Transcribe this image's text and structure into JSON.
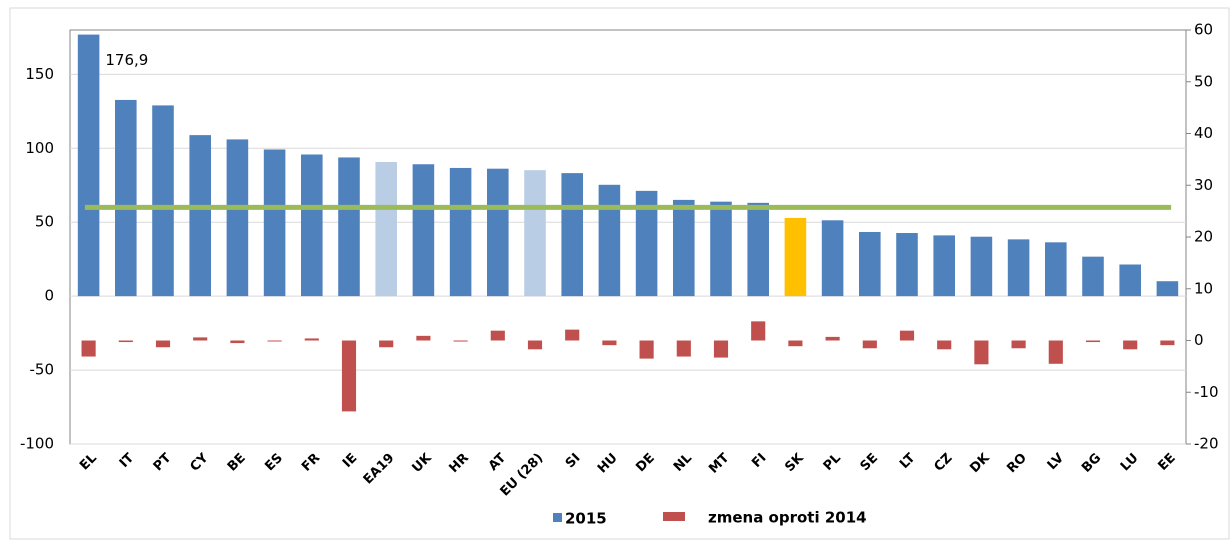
{
  "chart_data": {
    "type": "bar",
    "categories": [
      "EL",
      "IT",
      "PT",
      "CY",
      "BE",
      "ES",
      "FR",
      "IE",
      "EA19",
      "UK",
      "HR",
      "AT",
      "EU (28)",
      "SI",
      "HU",
      "DE",
      "NL",
      "MT",
      "FI",
      "SK",
      "PL",
      "SE",
      "LT",
      "CZ",
      "DK",
      "RO",
      "LV",
      "BG",
      "LU",
      "EE"
    ],
    "series": [
      {
        "name": "2015",
        "color": "#4f81bd",
        "colors": [
          "#4f81bd",
          "#4f81bd",
          "#4f81bd",
          "#4f81bd",
          "#4f81bd",
          "#4f81bd",
          "#4f81bd",
          "#4f81bd",
          "#b9cde5",
          "#4f81bd",
          "#4f81bd",
          "#4f81bd",
          "#b9cde5",
          "#4f81bd",
          "#4f81bd",
          "#4f81bd",
          "#4f81bd",
          "#4f81bd",
          "#4f81bd",
          "#ffc000",
          "#4f81bd",
          "#4f81bd",
          "#4f81bd",
          "#4f81bd",
          "#4f81bd",
          "#4f81bd",
          "#4f81bd",
          "#4f81bd",
          "#4f81bd",
          "#4f81bd"
        ],
        "values": [
          176.9,
          132.7,
          129.0,
          108.9,
          106.0,
          99.2,
          95.8,
          93.8,
          90.7,
          89.2,
          86.7,
          86.2,
          85.2,
          83.2,
          75.3,
          71.2,
          65.1,
          63.9,
          63.1,
          52.9,
          51.3,
          43.4,
          42.7,
          41.1,
          40.2,
          38.4,
          36.4,
          26.7,
          21.4,
          10.1
        ],
        "value_labels": [
          "176,9",
          null,
          null,
          null,
          null,
          null,
          null,
          null,
          null,
          null,
          null,
          null,
          null,
          null,
          null,
          null,
          null,
          null,
          null,
          null,
          null,
          null,
          null,
          null,
          null,
          null,
          null,
          null,
          null,
          null
        ]
      },
      {
        "name": "zmena oproti 2014",
        "color": "#c0504d",
        "axis": "y2",
        "values": [
          -3.1,
          -0.3,
          -1.3,
          0.6,
          -0.5,
          -0.1,
          0.4,
          -13.7,
          -1.3,
          0.9,
          -0.2,
          1.9,
          -1.7,
          2.1,
          -0.9,
          -3.5,
          -3.1,
          -3.3,
          3.7,
          -1.1,
          0.7,
          -1.5,
          1.9,
          -1.7,
          -4.6,
          -1.5,
          -4.5,
          -0.3,
          -1.7,
          -0.9
        ]
      }
    ],
    "reference_line": {
      "value": 60,
      "color": "#9bbb59"
    },
    "ylim": [
      -100,
      180
    ],
    "yticks": [
      -100,
      -50,
      0,
      50,
      100,
      150
    ],
    "y2lim": [
      -20,
      60
    ],
    "y2ticks": [
      -20,
      -10,
      0,
      10,
      20,
      30,
      40,
      50,
      60
    ],
    "grid": true
  }
}
